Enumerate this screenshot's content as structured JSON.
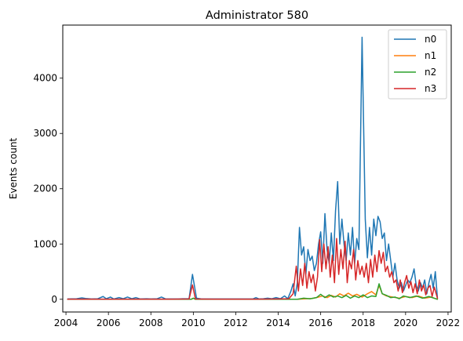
{
  "chart_data": {
    "type": "line",
    "title": "Administrator 580",
    "xlabel": "",
    "ylabel": "Events count",
    "xlim": [
      2003.85,
      2022.15
    ],
    "ylim": [
      -230,
      4960
    ],
    "xticks": [
      2004,
      2006,
      2008,
      2010,
      2012,
      2014,
      2016,
      2018,
      2020,
      2022
    ],
    "yticks": [
      0,
      1000,
      2000,
      3000,
      4000
    ],
    "legend_position": "top-right",
    "grid": false,
    "series": [
      {
        "name": "n0",
        "color": "#1f77b4",
        "points": [
          [
            2004.08,
            5
          ],
          [
            2004.5,
            10
          ],
          [
            2004.75,
            25
          ],
          [
            2004.92,
            15
          ],
          [
            2005.2,
            5
          ],
          [
            2005.5,
            10
          ],
          [
            2005.75,
            50
          ],
          [
            2005.9,
            10
          ],
          [
            2006.1,
            40
          ],
          [
            2006.25,
            5
          ],
          [
            2006.5,
            30
          ],
          [
            2006.7,
            10
          ],
          [
            2006.9,
            40
          ],
          [
            2007.1,
            10
          ],
          [
            2007.3,
            30
          ],
          [
            2007.5,
            5
          ],
          [
            2007.8,
            10
          ],
          [
            2008.0,
            5
          ],
          [
            2008.3,
            10
          ],
          [
            2008.5,
            40
          ],
          [
            2008.7,
            5
          ],
          [
            2009.0,
            5
          ],
          [
            2009.3,
            5
          ],
          [
            2009.5,
            10
          ],
          [
            2009.8,
            10
          ],
          [
            2009.96,
            450
          ],
          [
            2010.15,
            20
          ],
          [
            2010.4,
            5
          ],
          [
            2011.0,
            5
          ],
          [
            2012.0,
            5
          ],
          [
            2012.8,
            5
          ],
          [
            2012.95,
            30
          ],
          [
            2013.1,
            5
          ],
          [
            2013.3,
            10
          ],
          [
            2013.5,
            20
          ],
          [
            2013.7,
            10
          ],
          [
            2013.9,
            30
          ],
          [
            2014.1,
            10
          ],
          [
            2014.3,
            60
          ],
          [
            2014.45,
            10
          ],
          [
            2014.6,
            150
          ],
          [
            2014.7,
            280
          ],
          [
            2014.8,
            60
          ],
          [
            2014.9,
            300
          ],
          [
            2015.0,
            1300
          ],
          [
            2015.1,
            800
          ],
          [
            2015.2,
            950
          ],
          [
            2015.3,
            450
          ],
          [
            2015.4,
            900
          ],
          [
            2015.5,
            700
          ],
          [
            2015.6,
            780
          ],
          [
            2015.7,
            520
          ],
          [
            2015.8,
            650
          ],
          [
            2015.9,
            1000
          ],
          [
            2016.0,
            1220
          ],
          [
            2016.1,
            650
          ],
          [
            2016.2,
            1550
          ],
          [
            2016.3,
            900
          ],
          [
            2016.4,
            650
          ],
          [
            2016.5,
            1200
          ],
          [
            2016.6,
            700
          ],
          [
            2016.7,
            1600
          ],
          [
            2016.8,
            2130
          ],
          [
            2016.9,
            1000
          ],
          [
            2017.0,
            1450
          ],
          [
            2017.1,
            1000
          ],
          [
            2017.2,
            700
          ],
          [
            2017.3,
            1200
          ],
          [
            2017.4,
            800
          ],
          [
            2017.5,
            1300
          ],
          [
            2017.6,
            650
          ],
          [
            2017.7,
            1100
          ],
          [
            2017.8,
            900
          ],
          [
            2017.95,
            4740
          ],
          [
            2018.1,
            1450
          ],
          [
            2018.2,
            750
          ],
          [
            2018.3,
            1300
          ],
          [
            2018.4,
            800
          ],
          [
            2018.5,
            1450
          ],
          [
            2018.6,
            1150
          ],
          [
            2018.7,
            1500
          ],
          [
            2018.8,
            1400
          ],
          [
            2018.9,
            1100
          ],
          [
            2019.0,
            1200
          ],
          [
            2019.1,
            700
          ],
          [
            2019.2,
            1000
          ],
          [
            2019.3,
            700
          ],
          [
            2019.4,
            400
          ],
          [
            2019.5,
            650
          ],
          [
            2019.6,
            350
          ],
          [
            2019.7,
            200
          ],
          [
            2019.8,
            300
          ],
          [
            2019.9,
            150
          ],
          [
            2020.0,
            250
          ],
          [
            2020.1,
            350
          ],
          [
            2020.2,
            300
          ],
          [
            2020.3,
            400
          ],
          [
            2020.4,
            550
          ],
          [
            2020.5,
            250
          ],
          [
            2020.6,
            150
          ],
          [
            2020.7,
            300
          ],
          [
            2020.8,
            200
          ],
          [
            2020.9,
            350
          ],
          [
            2021.0,
            100
          ],
          [
            2021.1,
            300
          ],
          [
            2021.2,
            450
          ],
          [
            2021.3,
            200
          ],
          [
            2021.4,
            500
          ],
          [
            2021.5,
            20
          ]
        ]
      },
      {
        "name": "n1",
        "color": "#ff7f0e",
        "points": [
          [
            2004.08,
            0
          ],
          [
            2009.9,
            0
          ],
          [
            2010.0,
            20
          ],
          [
            2010.1,
            0
          ],
          [
            2014.9,
            0
          ],
          [
            2015.3,
            10
          ],
          [
            2015.6,
            15
          ],
          [
            2015.9,
            40
          ],
          [
            2016.1,
            60
          ],
          [
            2016.3,
            30
          ],
          [
            2016.5,
            70
          ],
          [
            2016.7,
            40
          ],
          [
            2016.9,
            100
          ],
          [
            2017.1,
            60
          ],
          [
            2017.3,
            110
          ],
          [
            2017.5,
            60
          ],
          [
            2017.7,
            90
          ],
          [
            2017.95,
            40
          ],
          [
            2018.2,
            100
          ],
          [
            2018.4,
            140
          ],
          [
            2018.6,
            80
          ],
          [
            2018.75,
            250
          ],
          [
            2018.9,
            100
          ],
          [
            2019.1,
            60
          ],
          [
            2019.4,
            40
          ],
          [
            2019.7,
            20
          ],
          [
            2020.0,
            50
          ],
          [
            2020.3,
            30
          ],
          [
            2020.6,
            60
          ],
          [
            2020.9,
            20
          ],
          [
            2021.2,
            40
          ],
          [
            2021.5,
            0
          ]
        ]
      },
      {
        "name": "n2",
        "color": "#2ca02c",
        "points": [
          [
            2004.08,
            0
          ],
          [
            2009.9,
            0
          ],
          [
            2010.0,
            20
          ],
          [
            2010.1,
            0
          ],
          [
            2014.9,
            0
          ],
          [
            2015.2,
            20
          ],
          [
            2015.5,
            10
          ],
          [
            2015.8,
            30
          ],
          [
            2016.0,
            90
          ],
          [
            2016.2,
            30
          ],
          [
            2016.4,
            80
          ],
          [
            2016.6,
            40
          ],
          [
            2016.8,
            60
          ],
          [
            2017.0,
            30
          ],
          [
            2017.2,
            70
          ],
          [
            2017.4,
            20
          ],
          [
            2017.6,
            60
          ],
          [
            2017.8,
            30
          ],
          [
            2018.0,
            80
          ],
          [
            2018.2,
            30
          ],
          [
            2018.4,
            60
          ],
          [
            2018.6,
            50
          ],
          [
            2018.75,
            280
          ],
          [
            2018.9,
            100
          ],
          [
            2019.1,
            70
          ],
          [
            2019.3,
            30
          ],
          [
            2019.5,
            40
          ],
          [
            2019.7,
            10
          ],
          [
            2019.9,
            60
          ],
          [
            2020.2,
            30
          ],
          [
            2020.5,
            60
          ],
          [
            2020.8,
            20
          ],
          [
            2021.1,
            50
          ],
          [
            2021.5,
            0
          ]
        ]
      },
      {
        "name": "n3",
        "color": "#d62728",
        "points": [
          [
            2004.08,
            2
          ],
          [
            2005.0,
            2
          ],
          [
            2006.0,
            2
          ],
          [
            2007.0,
            2
          ],
          [
            2008.0,
            2
          ],
          [
            2009.0,
            2
          ],
          [
            2009.8,
            5
          ],
          [
            2009.96,
            260
          ],
          [
            2010.1,
            5
          ],
          [
            2011.0,
            2
          ],
          [
            2012.0,
            2
          ],
          [
            2013.0,
            2
          ],
          [
            2014.0,
            5
          ],
          [
            2014.5,
            10
          ],
          [
            2014.7,
            100
          ],
          [
            2014.85,
            600
          ],
          [
            2014.95,
            150
          ],
          [
            2015.05,
            550
          ],
          [
            2015.15,
            250
          ],
          [
            2015.25,
            650
          ],
          [
            2015.35,
            200
          ],
          [
            2015.45,
            500
          ],
          [
            2015.55,
            300
          ],
          [
            2015.65,
            450
          ],
          [
            2015.75,
            150
          ],
          [
            2015.85,
            400
          ],
          [
            2015.95,
            1080
          ],
          [
            2016.05,
            500
          ],
          [
            2016.15,
            1000
          ],
          [
            2016.25,
            550
          ],
          [
            2016.35,
            950
          ],
          [
            2016.45,
            400
          ],
          [
            2016.55,
            800
          ],
          [
            2016.65,
            300
          ],
          [
            2016.75,
            1100
          ],
          [
            2016.85,
            450
          ],
          [
            2016.95,
            900
          ],
          [
            2017.05,
            550
          ],
          [
            2017.15,
            1050
          ],
          [
            2017.25,
            300
          ],
          [
            2017.35,
            700
          ],
          [
            2017.45,
            550
          ],
          [
            2017.55,
            900
          ],
          [
            2017.65,
            350
          ],
          [
            2017.75,
            700
          ],
          [
            2017.85,
            450
          ],
          [
            2017.95,
            600
          ],
          [
            2018.05,
            400
          ],
          [
            2018.15,
            650
          ],
          [
            2018.25,
            300
          ],
          [
            2018.35,
            720
          ],
          [
            2018.45,
            400
          ],
          [
            2018.55,
            800
          ],
          [
            2018.65,
            500
          ],
          [
            2018.75,
            880
          ],
          [
            2018.85,
            650
          ],
          [
            2018.95,
            850
          ],
          [
            2019.05,
            500
          ],
          [
            2019.15,
            600
          ],
          [
            2019.25,
            400
          ],
          [
            2019.35,
            500
          ],
          [
            2019.45,
            300
          ],
          [
            2019.55,
            350
          ],
          [
            2019.65,
            150
          ],
          [
            2019.75,
            350
          ],
          [
            2019.85,
            120
          ],
          [
            2019.95,
            300
          ],
          [
            2020.05,
            430
          ],
          [
            2020.15,
            200
          ],
          [
            2020.25,
            320
          ],
          [
            2020.35,
            120
          ],
          [
            2020.45,
            280
          ],
          [
            2020.55,
            100
          ],
          [
            2020.65,
            350
          ],
          [
            2020.75,
            150
          ],
          [
            2020.85,
            260
          ],
          [
            2020.95,
            80
          ],
          [
            2021.05,
            200
          ],
          [
            2021.15,
            250
          ],
          [
            2021.25,
            50
          ],
          [
            2021.35,
            220
          ],
          [
            2021.5,
            20
          ]
        ]
      }
    ]
  }
}
